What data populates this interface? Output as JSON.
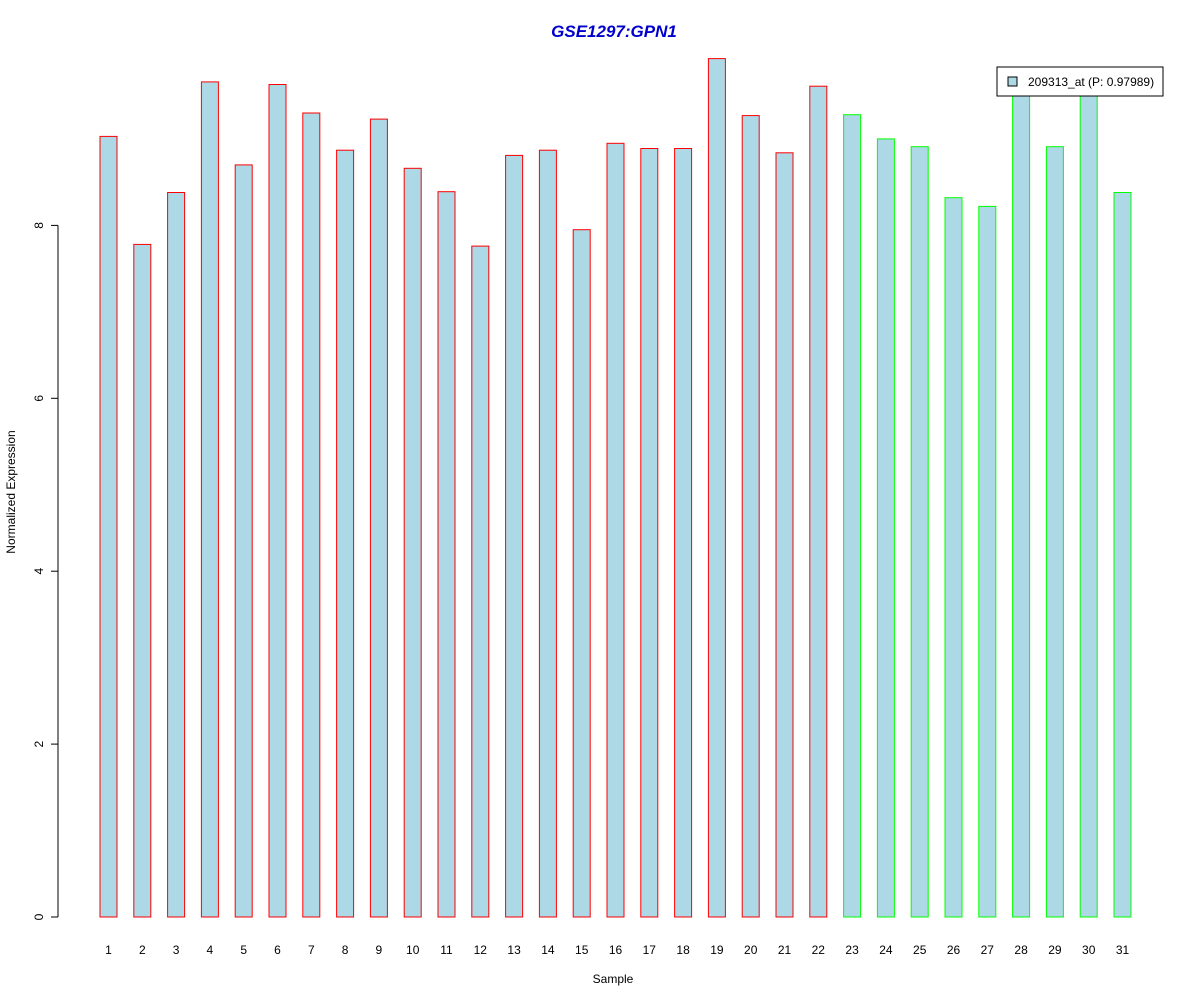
{
  "chart_data": {
    "type": "bar",
    "title": "GSE1297:GPN1",
    "xlabel": "Sample",
    "ylabel": "Normalized Expression",
    "ylim": [
      0,
      9.9
    ],
    "yticks": [
      0,
      2,
      4,
      6,
      8
    ],
    "categories": [
      "1",
      "2",
      "3",
      "4",
      "5",
      "6",
      "7",
      "8",
      "9",
      "10",
      "11",
      "12",
      "13",
      "14",
      "15",
      "16",
      "17",
      "18",
      "19",
      "20",
      "21",
      "22",
      "23",
      "24",
      "25",
      "26",
      "27",
      "28",
      "29",
      "30",
      "31"
    ],
    "series": [
      {
        "name": "209313_at (P: 0.97989)",
        "values": [
          9.03,
          7.78,
          8.38,
          9.66,
          8.7,
          9.63,
          9.3,
          8.87,
          9.23,
          8.66,
          8.39,
          7.76,
          8.81,
          8.87,
          7.95,
          8.95,
          8.89,
          8.89,
          9.93,
          9.27,
          8.84,
          9.61,
          9.28,
          9.0,
          8.91,
          8.32,
          8.22,
          9.65,
          8.91,
          9.7,
          8.38
        ]
      }
    ],
    "group_outline": [
      "red",
      "red",
      "red",
      "red",
      "red",
      "red",
      "red",
      "red",
      "red",
      "red",
      "red",
      "red",
      "red",
      "red",
      "red",
      "red",
      "red",
      "red",
      "red",
      "red",
      "red",
      "red",
      "green",
      "green",
      "green",
      "green",
      "green",
      "green",
      "green",
      "green",
      "green"
    ],
    "colors": {
      "bar_fill": "#add8e6",
      "outline_red": "#ff0000",
      "outline_green": "#00ff00",
      "title": "#0000cd"
    },
    "legend": {
      "label": "209313_at (P: 0.97989)",
      "position": "top-right"
    },
    "grid": false
  }
}
